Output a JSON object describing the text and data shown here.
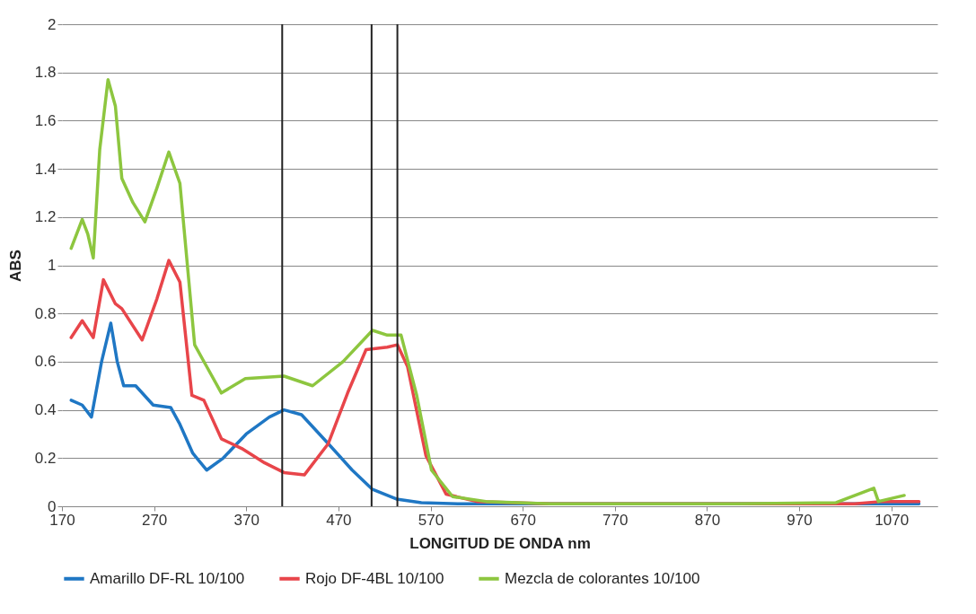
{
  "chart_data": {
    "type": "line",
    "xlabel": "LONGITUD DE ONDA nm",
    "ylabel": "ABS",
    "xlim": [
      170,
      1120
    ],
    "xticks": [
      170,
      270,
      370,
      470,
      570,
      670,
      770,
      870,
      970,
      1070
    ],
    "ylim": [
      0,
      2
    ],
    "yticks": [
      0,
      0.2,
      0.4,
      0.6,
      0.8,
      1,
      1.2,
      1.4,
      1.6,
      1.8,
      2
    ],
    "grid": "y",
    "legend": "bottom",
    "marker": "none",
    "line_style": "solid",
    "series": [
      {
        "name": "Amarillo DF-RL 10/100",
        "color": "#1f77c4",
        "x": [
          180,
          192,
          202,
          213,
          223,
          230,
          237,
          250,
          269,
          288,
          298,
          312,
          327,
          345,
          370,
          395,
          411,
          430,
          459,
          485,
          507,
          533,
          560,
          600,
          700,
          1030,
          1060,
          1100
        ],
        "values": [
          0.44,
          0.42,
          0.37,
          0.6,
          0.76,
          0.6,
          0.5,
          0.5,
          0.42,
          0.41,
          0.34,
          0.22,
          0.15,
          0.2,
          0.3,
          0.37,
          0.4,
          0.38,
          0.26,
          0.15,
          0.07,
          0.03,
          0.015,
          0.01,
          0.01,
          0.01,
          0.01,
          0.01
        ]
      },
      {
        "name": "Rojo DF-4BL 10/100",
        "color": "#e8454a",
        "x": [
          180,
          192,
          204,
          215,
          228,
          235,
          257,
          273,
          286,
          298,
          311,
          324,
          343,
          365,
          390,
          411,
          433,
          459,
          480,
          500,
          523,
          534,
          545,
          565,
          587,
          620,
          700,
          1030,
          1060,
          1100
        ],
        "values": [
          0.7,
          0.77,
          0.7,
          0.94,
          0.84,
          0.82,
          0.69,
          0.86,
          1.02,
          0.93,
          0.46,
          0.44,
          0.28,
          0.24,
          0.18,
          0.14,
          0.13,
          0.26,
          0.47,
          0.65,
          0.66,
          0.67,
          0.58,
          0.21,
          0.05,
          0.02,
          0.01,
          0.01,
          0.02,
          0.02
        ]
      },
      {
        "name": "Mezcla de colorantes 10/100",
        "color": "#8dc63f",
        "x": [
          180,
          192,
          198,
          204,
          211,
          220,
          228,
          235,
          247,
          260,
          273,
          286,
          298,
          314,
          327,
          343,
          369,
          411,
          442,
          475,
          507,
          523,
          538,
          555,
          571,
          594,
          630,
          700,
          900,
          1010,
          1051,
          1056,
          1084
        ],
        "values": [
          1.07,
          1.19,
          1.13,
          1.03,
          1.48,
          1.77,
          1.66,
          1.36,
          1.26,
          1.18,
          1.32,
          1.47,
          1.34,
          0.67,
          0.58,
          0.47,
          0.53,
          0.54,
          0.5,
          0.6,
          0.73,
          0.71,
          0.71,
          0.46,
          0.15,
          0.04,
          0.02,
          0.01,
          0.01,
          0.015,
          0.075,
          0.02,
          0.045
        ]
      }
    ],
    "ref_lines": [
      {
        "axis": "x",
        "value": 409,
        "color": "#222222"
      },
      {
        "axis": "x",
        "value": 506,
        "color": "#222222"
      },
      {
        "axis": "x",
        "value": 534,
        "color": "#222222"
      }
    ]
  }
}
